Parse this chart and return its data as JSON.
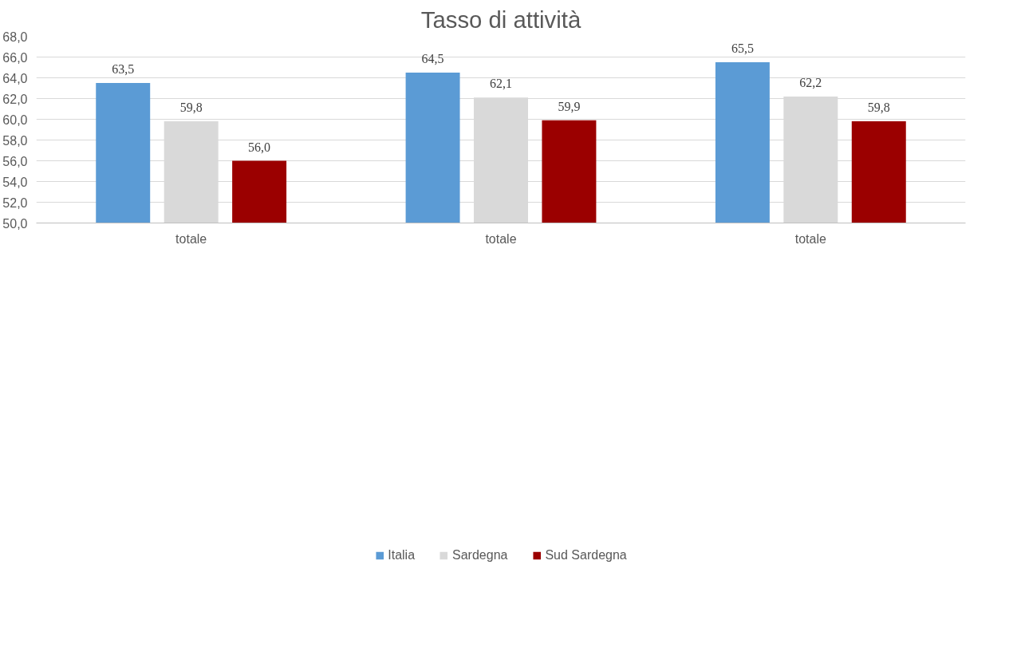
{
  "chart_data": {
    "type": "bar",
    "title": "Tasso di attività",
    "categories": [
      "totale",
      "totale",
      "totale"
    ],
    "series": [
      {
        "name": "Italia",
        "color": "#5b9bd5",
        "values": [
          63.5,
          64.5,
          65.5
        ],
        "value_labels": [
          "63,5",
          "64,5",
          "65,5"
        ]
      },
      {
        "name": "Sardegna",
        "color": "#d9d9d9",
        "values": [
          59.8,
          62.1,
          62.2
        ],
        "value_labels": [
          "59,8",
          "62,1",
          "62,2"
        ]
      },
      {
        "name": "Sud Sardegna",
        "color": "#9b0000",
        "values": [
          56.0,
          59.9,
          59.8
        ],
        "value_labels": [
          "56,0",
          "59,9",
          "59,8"
        ]
      }
    ],
    "ylim": [
      50,
      68
    ],
    "yticks": [
      {
        "value": 50,
        "label": "50,0"
      },
      {
        "value": 52,
        "label": "52,0"
      },
      {
        "value": 54,
        "label": "54,0"
      },
      {
        "value": 56,
        "label": "56,0"
      },
      {
        "value": 58,
        "label": "58,0"
      },
      {
        "value": 60,
        "label": "60,0"
      },
      {
        "value": 62,
        "label": "62,0"
      },
      {
        "value": 64,
        "label": "64,0"
      },
      {
        "value": 66,
        "label": "66,0"
      },
      {
        "value": 68,
        "label": "68,0"
      }
    ],
    "grid": "y",
    "legend": "bottom"
  }
}
